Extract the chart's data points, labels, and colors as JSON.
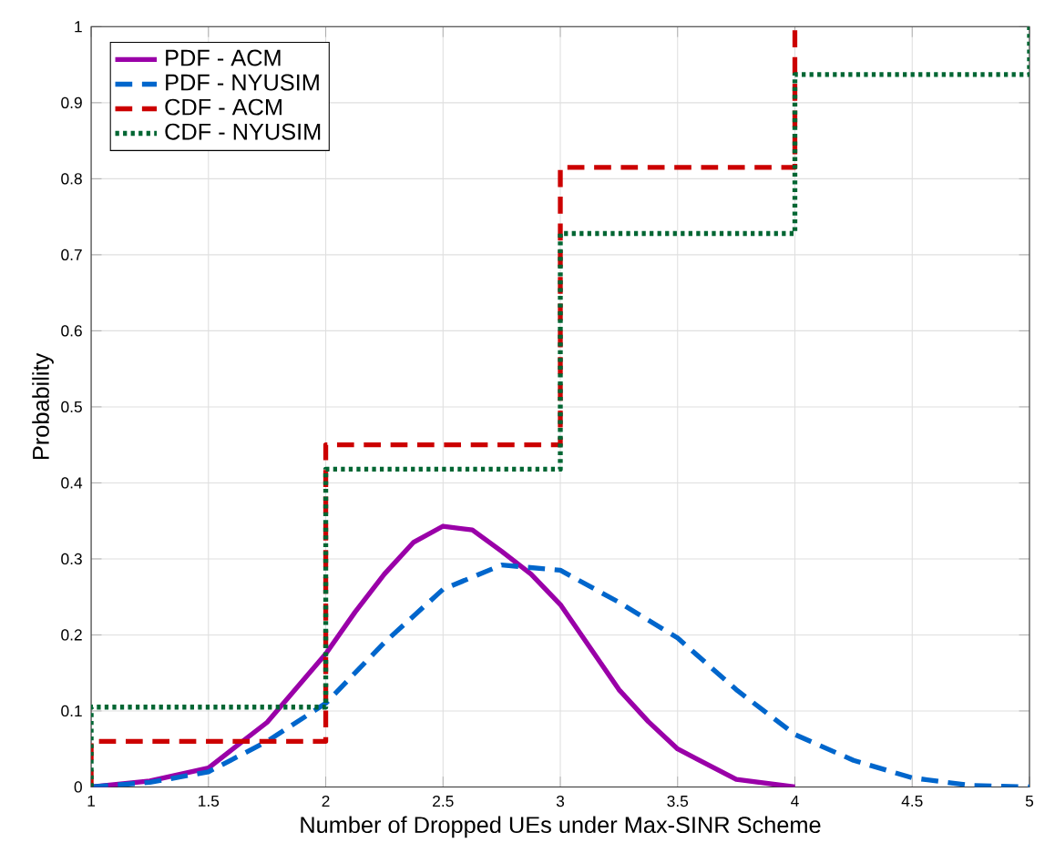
{
  "chart_data": {
    "type": "line",
    "xlabel": "Number of Dropped UEs under Max-SINR Scheme",
    "ylabel": "Probability",
    "xlim": [
      1,
      5
    ],
    "ylim": [
      0,
      1
    ],
    "xticks": [
      1,
      1.5,
      2,
      2.5,
      3,
      3.5,
      4,
      4.5,
      5
    ],
    "yticks": [
      0,
      0.1,
      0.2,
      0.3,
      0.4,
      0.5,
      0.6,
      0.7,
      0.8,
      0.9,
      1
    ],
    "grid": true,
    "legend": "top left",
    "marker": "none",
    "series": [
      {
        "name": "PDF - ACM",
        "color": "#9a00a8",
        "line_style": "solid",
        "x": [
          1,
          1.25,
          1.5,
          1.75,
          2,
          2.125,
          2.25,
          2.375,
          2.5,
          2.625,
          2.75,
          2.875,
          3,
          3.125,
          3.25,
          3.375,
          3.5,
          3.75,
          4
        ],
        "values": [
          0,
          0.008,
          0.025,
          0.085,
          0.175,
          0.23,
          0.28,
          0.322,
          0.343,
          0.338,
          0.31,
          0.28,
          0.24,
          0.184,
          0.128,
          0.086,
          0.05,
          0.01,
          0
        ]
      },
      {
        "name": "PDF - NYUSIM",
        "color": "#0066cc",
        "line_style": "dashed",
        "x": [
          1,
          1.25,
          1.5,
          1.75,
          2,
          2.25,
          2.5,
          2.75,
          3,
          3.25,
          3.5,
          3.75,
          4,
          4.25,
          4.5,
          4.75,
          5
        ],
        "values": [
          0,
          0.006,
          0.02,
          0.06,
          0.11,
          0.19,
          0.26,
          0.292,
          0.285,
          0.243,
          0.196,
          0.128,
          0.069,
          0.035,
          0.012,
          0.002,
          0
        ]
      },
      {
        "name": "CDF - ACM",
        "type": "step",
        "color": "#cc0000",
        "line_style": "dashed",
        "x": [
          1,
          1,
          2,
          3,
          4
        ],
        "values": [
          0,
          0.06,
          0.45,
          0.815,
          1
        ]
      },
      {
        "name": "CDF - NYUSIM",
        "type": "step",
        "color": "#006633",
        "line_style": "dotted",
        "x": [
          1,
          1,
          2,
          3,
          4,
          5
        ],
        "values": [
          0,
          0.105,
          0.418,
          0.728,
          0.937,
          1
        ]
      }
    ]
  }
}
